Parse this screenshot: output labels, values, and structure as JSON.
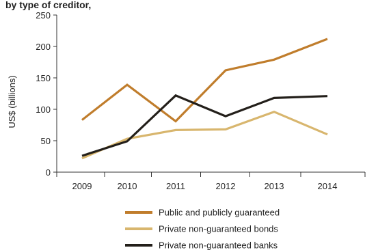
{
  "top_fragment": "by type of creditor, ",
  "chart_data": {
    "type": "line",
    "x": [
      "2009",
      "2010",
      "2011",
      "2012",
      "2013",
      "2014"
    ],
    "ylabel": "US$ (billions)",
    "xlabel": "",
    "ylim": [
      0,
      250
    ],
    "yticks": [
      0,
      50,
      100,
      150,
      200,
      250
    ],
    "grid": false,
    "legend_position": "bottom",
    "series": [
      {
        "name": "Public and publicly guaranteed",
        "color": "#c07d2c",
        "values": [
          83,
          139,
          81,
          162,
          179,
          212
        ]
      },
      {
        "name": "Private non-guaranteed bonds",
        "color": "#d8b66e",
        "values": [
          22,
          53,
          67,
          68,
          96,
          60
        ]
      },
      {
        "name": "Private non-guaranteed banks",
        "color": "#231f1a",
        "values": [
          26,
          49,
          122,
          89,
          118,
          121
        ]
      }
    ]
  }
}
